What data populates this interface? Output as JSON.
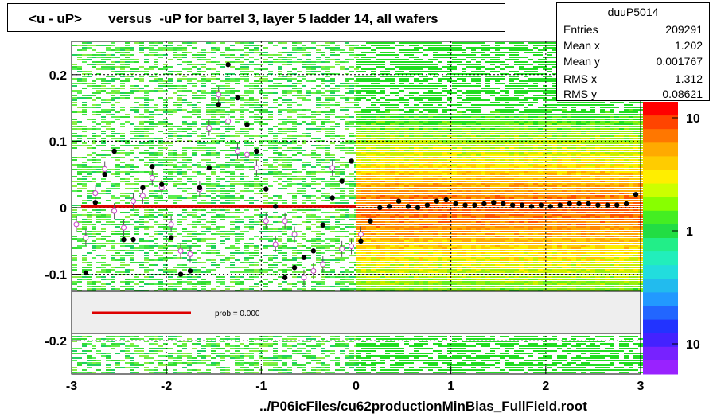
{
  "chart_data": {
    "type": "heatmap",
    "title": "<u - uP>       versus  -uP for barrel 3, layer 5 ladder 14, all wafers",
    "xlim": [
      -3,
      3
    ],
    "ylim": [
      -0.25,
      0.25
    ],
    "x_ticks": [
      "-3",
      "-2",
      "-1",
      "0",
      "1",
      "2",
      "3"
    ],
    "y_ticks": [
      "0.2",
      "0.1",
      "0",
      "-0.1",
      "-0.2"
    ],
    "colorbar_ticks": [
      "10",
      "1",
      "10"
    ],
    "grid": true,
    "stats": {
      "name": "duuP5014",
      "rows": [
        {
          "label": "Entries",
          "value": "209291"
        },
        {
          "label": "Mean x",
          "value": "1.202"
        },
        {
          "label": "Mean y",
          "value": "0.001767"
        },
        {
          "label": "RMS x",
          "value": "1.312"
        },
        {
          "label": "RMS y",
          "value": "0.08621"
        }
      ]
    },
    "fit_legend": {
      "label": "prob = 0.000",
      "color": "#dd0000"
    },
    "fit_line": {
      "x": [
        -2.9,
        0.0
      ],
      "y": [
        0.002,
        0.002
      ]
    },
    "profile_black": [
      {
        "x": -2.85,
        "y": -0.098
      },
      {
        "x": -2.75,
        "y": 0.008
      },
      {
        "x": -2.65,
        "y": 0.05
      },
      {
        "x": -2.55,
        "y": 0.085
      },
      {
        "x": -2.45,
        "y": -0.048
      },
      {
        "x": -2.35,
        "y": -0.048
      },
      {
        "x": -2.25,
        "y": 0.03
      },
      {
        "x": -2.15,
        "y": 0.062
      },
      {
        "x": -2.05,
        "y": 0.035
      },
      {
        "x": -1.95,
        "y": -0.045
      },
      {
        "x": -1.85,
        "y": -0.1
      },
      {
        "x": -1.75,
        "y": -0.095
      },
      {
        "x": -1.65,
        "y": 0.03
      },
      {
        "x": -1.55,
        "y": 0.06
      },
      {
        "x": -1.45,
        "y": 0.155
      },
      {
        "x": -1.35,
        "y": 0.215
      },
      {
        "x": -1.25,
        "y": 0.165
      },
      {
        "x": -1.15,
        "y": 0.125
      },
      {
        "x": -1.05,
        "y": 0.085
      },
      {
        "x": -0.95,
        "y": 0.028
      },
      {
        "x": -0.85,
        "y": 0.002
      },
      {
        "x": -0.75,
        "y": -0.105
      },
      {
        "x": -0.65,
        "y": -0.09
      },
      {
        "x": -0.55,
        "y": -0.075
      },
      {
        "x": -0.45,
        "y": -0.065
      },
      {
        "x": -0.35,
        "y": -0.026
      },
      {
        "x": -0.25,
        "y": 0.015
      },
      {
        "x": -0.15,
        "y": 0.04
      },
      {
        "x": -0.05,
        "y": 0.07
      },
      {
        "x": 0.05,
        "y": -0.05
      },
      {
        "x": 0.15,
        "y": -0.02
      },
      {
        "x": 0.25,
        "y": 0.0
      },
      {
        "x": 0.35,
        "y": 0.002
      },
      {
        "x": 0.45,
        "y": 0.01
      },
      {
        "x": 0.55,
        "y": 0.002
      },
      {
        "x": 0.65,
        "y": 0.0
      },
      {
        "x": 0.75,
        "y": 0.004
      },
      {
        "x": 0.85,
        "y": 0.01
      },
      {
        "x": 0.95,
        "y": 0.012
      },
      {
        "x": 1.05,
        "y": 0.006
      },
      {
        "x": 1.15,
        "y": 0.004
      },
      {
        "x": 1.25,
        "y": 0.004
      },
      {
        "x": 1.35,
        "y": 0.006
      },
      {
        "x": 1.45,
        "y": 0.008
      },
      {
        "x": 1.55,
        "y": 0.006
      },
      {
        "x": 1.65,
        "y": 0.004
      },
      {
        "x": 1.75,
        "y": 0.004
      },
      {
        "x": 1.85,
        "y": 0.002
      },
      {
        "x": 1.95,
        "y": 0.004
      },
      {
        "x": 2.05,
        "y": 0.002
      },
      {
        "x": 2.15,
        "y": 0.004
      },
      {
        "x": 2.25,
        "y": 0.006
      },
      {
        "x": 2.35,
        "y": 0.006
      },
      {
        "x": 2.45,
        "y": 0.006
      },
      {
        "x": 2.55,
        "y": 0.004
      },
      {
        "x": 2.65,
        "y": 0.004
      },
      {
        "x": 2.75,
        "y": 0.004
      },
      {
        "x": 2.85,
        "y": 0.006
      },
      {
        "x": 2.95,
        "y": 0.02
      }
    ],
    "profile_open": [
      {
        "x": -2.95,
        "y": -0.025
      },
      {
        "x": -2.85,
        "y": -0.045
      },
      {
        "x": -2.75,
        "y": 0.022
      },
      {
        "x": -2.65,
        "y": 0.058
      },
      {
        "x": -2.55,
        "y": -0.005
      },
      {
        "x": -2.45,
        "y": -0.03
      },
      {
        "x": -2.35,
        "y": 0.01
      },
      {
        "x": -2.25,
        "y": 0.018
      },
      {
        "x": -2.15,
        "y": 0.045
      },
      {
        "x": -2.05,
        "y": 0.03
      },
      {
        "x": -1.95,
        "y": -0.025
      },
      {
        "x": -1.85,
        "y": -0.065
      },
      {
        "x": -1.75,
        "y": -0.07
      },
      {
        "x": -1.65,
        "y": 0.028
      },
      {
        "x": -1.55,
        "y": 0.12
      },
      {
        "x": -1.45,
        "y": 0.17
      },
      {
        "x": -1.35,
        "y": 0.13
      },
      {
        "x": -1.25,
        "y": 0.085
      },
      {
        "x": -1.15,
        "y": 0.08
      },
      {
        "x": -1.05,
        "y": 0.06
      },
      {
        "x": -0.95,
        "y": -0.02
      },
      {
        "x": -0.85,
        "y": -0.055
      },
      {
        "x": -0.75,
        "y": -0.02
      },
      {
        "x": -0.65,
        "y": -0.04
      },
      {
        "x": -0.55,
        "y": -0.105
      },
      {
        "x": -0.45,
        "y": -0.095
      },
      {
        "x": -0.35,
        "y": -0.085
      },
      {
        "x": -0.25,
        "y": 0.06
      },
      {
        "x": -0.15,
        "y": -0.062
      },
      {
        "x": -0.05,
        "y": -0.058
      },
      {
        "x": 0.05,
        "y": -0.04
      }
    ]
  }
}
